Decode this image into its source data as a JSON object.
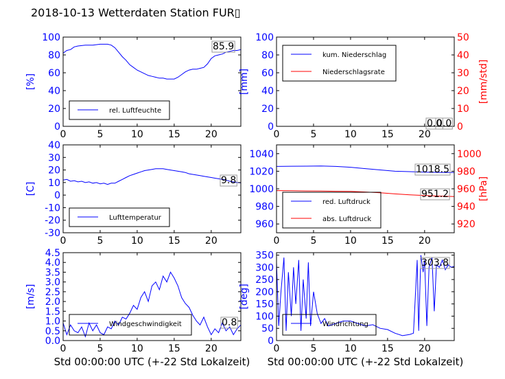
{
  "title": "2018-10-13 Wetterdaten Station FUR▯",
  "xlabel": "Std 00:00:00 UTC (+-22 Std Lokalzeit)",
  "colors": {
    "left_axis": "#0000ff",
    "right_axis": "#ff0000",
    "line1": "#0000ff",
    "line2": "#ff0000",
    "line_light": "#7f7fff"
  },
  "chart_data": [
    {
      "type": "line",
      "panel": "humidity",
      "ylabel": "[%]",
      "xlim": [
        0,
        24
      ],
      "ylim": [
        0,
        100
      ],
      "xticks": [
        0,
        5,
        10,
        15,
        20
      ],
      "yticks": [
        0,
        20,
        40,
        60,
        80,
        100
      ],
      "legend": "bottom-left",
      "grid": false,
      "series": [
        {
          "name": "rel. Luftfeuchte",
          "x": [
            0,
            0.5,
            1,
            1.5,
            2,
            3,
            4,
            5,
            6,
            6.5,
            7,
            7.5,
            8,
            8.5,
            9,
            9.5,
            10,
            10.5,
            11,
            11.5,
            12,
            12.5,
            13,
            13.5,
            14,
            14.5,
            15,
            15.5,
            16,
            16.5,
            17,
            17.5,
            18,
            18.5,
            19,
            19.5,
            20,
            20.5,
            21,
            21.5,
            22,
            22.5,
            23,
            23.5,
            24
          ],
          "y": [
            82,
            85,
            86,
            89,
            90,
            91,
            91,
            92,
            92,
            91,
            88,
            83,
            78,
            74,
            69,
            66,
            63,
            61,
            59,
            57,
            56,
            55,
            54,
            54,
            53,
            53,
            53,
            55,
            58,
            61,
            63,
            64,
            64,
            65,
            66,
            70,
            76,
            79,
            80,
            81,
            83,
            84,
            85,
            85,
            86
          ]
        }
      ],
      "annotation": "85.9"
    },
    {
      "type": "line",
      "panel": "precipitation",
      "ylabel": "[mm]",
      "ylabel_right": "[mm/std]",
      "xlim": [
        0,
        24
      ],
      "ylim": [
        0,
        100
      ],
      "ylim_right": [
        0,
        50
      ],
      "xticks": [
        0,
        5,
        10,
        15,
        20
      ],
      "yticks": [
        0,
        20,
        40,
        60,
        80,
        100
      ],
      "yticks_right": [
        0,
        10,
        20,
        30,
        40,
        50
      ],
      "legend": "top-left",
      "grid": false,
      "series": [
        {
          "name": "kum. Niederschlag",
          "x": [
            0,
            24
          ],
          "y": [
            0,
            0
          ]
        },
        {
          "name": "Niederschlagsrate",
          "x": [
            0,
            24
          ],
          "y": [
            0,
            0
          ],
          "axis": "right"
        }
      ],
      "annotation": "0.0",
      "annotation2": "0.0"
    },
    {
      "type": "line",
      "panel": "temperature",
      "ylabel": "[C]",
      "xlim": [
        0,
        24
      ],
      "ylim": [
        -30,
        40
      ],
      "xticks": [
        0,
        5,
        10,
        15,
        20
      ],
      "yticks": [
        -30,
        -20,
        -10,
        0,
        10,
        20,
        30,
        40
      ],
      "legend": "bottom-left",
      "grid": false,
      "series": [
        {
          "name": "Lufttemperatur",
          "x": [
            0,
            0.5,
            1,
            1.5,
            2,
            2.5,
            3,
            3.5,
            4,
            4.5,
            5,
            5.5,
            6,
            6.5,
            7,
            7.5,
            8,
            8.5,
            9,
            9.5,
            10,
            10.5,
            11,
            11.5,
            12,
            12.5,
            13,
            13.5,
            14,
            14.5,
            15,
            15.5,
            16,
            16.5,
            17,
            17.5,
            18,
            18.5,
            19,
            19.5,
            20,
            20.5,
            21,
            21.5,
            22,
            22.5,
            23,
            23.5,
            24
          ],
          "y": [
            12,
            12.5,
            11,
            11.5,
            10.5,
            11,
            10,
            10.5,
            9.5,
            10,
            9,
            9.5,
            8.5,
            9.5,
            9.5,
            11,
            12.5,
            14,
            15.5,
            16.5,
            17.5,
            18.5,
            19.5,
            20,
            20.5,
            21,
            21,
            21,
            20.5,
            20,
            19.5,
            19,
            18.5,
            18,
            17,
            16.5,
            16,
            15.5,
            15,
            14.5,
            14,
            13.5,
            13,
            12.5,
            12,
            11,
            10.5,
            10,
            9.8
          ]
        }
      ],
      "annotation": "9.8"
    },
    {
      "type": "line",
      "panel": "pressure",
      "ylabel_right": "[hPa]",
      "xlim": [
        0,
        24
      ],
      "ylim": [
        950,
        1050
      ],
      "ylim_right": [
        910,
        1010
      ],
      "xticks": [
        0,
        5,
        10,
        15,
        20
      ],
      "yticks": [
        960,
        980,
        1000,
        1020,
        1040
      ],
      "yticks_right": [
        920,
        940,
        960,
        980,
        1000
      ],
      "legend": "bottom-left",
      "grid": false,
      "series": [
        {
          "name": "red. Luftdruck",
          "x": [
            0,
            2,
            4,
            6,
            8,
            10,
            12,
            14,
            16,
            18,
            20,
            22,
            24
          ],
          "y": [
            1025.5,
            1025.7,
            1025.8,
            1026,
            1025.5,
            1024.5,
            1023,
            1021.5,
            1020,
            1019.5,
            1019,
            1018.7,
            1018.5
          ]
        },
        {
          "name": "abs. Luftdruck",
          "x": [
            0,
            2,
            4,
            6,
            8,
            10,
            12,
            14,
            16,
            18,
            20,
            22,
            24
          ],
          "y": [
            958,
            957.8,
            957.6,
            957.5,
            957.2,
            957,
            956.4,
            955.5,
            954.2,
            953.2,
            952.4,
            951.7,
            951.2
          ],
          "axis": "right"
        }
      ],
      "annotation": "1018.5",
      "annotation2": "951.2"
    },
    {
      "type": "line",
      "panel": "wind_speed",
      "ylabel": "[m/s]",
      "xlim": [
        0,
        24
      ],
      "ylim": [
        0,
        4.5
      ],
      "xticks": [
        0,
        5,
        10,
        15,
        20
      ],
      "yticks": [
        0.0,
        0.5,
        1.0,
        1.5,
        2.0,
        2.5,
        3.0,
        3.5,
        4.0,
        4.5
      ],
      "legend": "bottom-left",
      "grid": false,
      "series": [
        {
          "name": "Windgeschwindigkeit",
          "x": [
            0,
            0.5,
            1,
            1.5,
            2,
            2.5,
            3,
            3.5,
            4,
            4.5,
            5,
            5.5,
            6,
            6.5,
            7,
            7.5,
            8,
            8.5,
            9,
            9.5,
            10,
            10.5,
            11,
            11.5,
            12,
            12.5,
            13,
            13.5,
            14,
            14.5,
            15,
            15.5,
            16,
            16.5,
            17,
            17.5,
            18,
            18.5,
            19,
            19.5,
            20,
            20.5,
            21,
            21.5,
            22,
            22.5,
            23,
            23.5,
            24
          ],
          "y": [
            0.9,
            0.3,
            0.8,
            0.5,
            0.4,
            0.7,
            0.2,
            0.9,
            0.5,
            0.8,
            0.4,
            0.3,
            0.7,
            0.6,
            1.0,
            0.8,
            1.2,
            1.1,
            1.4,
            1.8,
            1.6,
            2.2,
            2.5,
            2.0,
            2.8,
            3.0,
            2.6,
            3.3,
            3.0,
            3.5,
            3.2,
            2.8,
            2.2,
            1.9,
            1.7,
            1.3,
            1.0,
            0.8,
            1.2,
            0.7,
            0.3,
            0.6,
            0.4,
            0.9,
            0.5,
            0.7,
            0.3,
            0.6,
            0.8
          ]
        }
      ],
      "annotation": "0.8"
    },
    {
      "type": "line",
      "panel": "wind_direction",
      "ylabel": "[deg]",
      "xlim": [
        0,
        24
      ],
      "ylim": [
        0,
        360
      ],
      "xticks": [
        0,
        5,
        10,
        15,
        20
      ],
      "yticks": [
        0,
        50,
        100,
        150,
        200,
        250,
        300,
        350
      ],
      "legend": "bottom-left",
      "grid": false,
      "series": [
        {
          "name": "Windrichtung",
          "x": [
            0,
            0.3,
            0.6,
            1,
            1.3,
            1.6,
            2,
            2.3,
            2.6,
            3,
            3.3,
            3.6,
            4,
            4.3,
            4.6,
            5,
            5.5,
            6,
            6.5,
            7,
            8,
            9,
            10,
            11,
            12,
            13,
            14,
            15,
            16,
            17,
            18,
            18.5,
            19,
            19.2,
            19.5,
            19.8,
            20,
            20.3,
            20.6,
            21,
            21.3,
            21.6,
            22,
            22.4,
            22.8,
            23.2,
            23.6,
            24
          ],
          "y": [
            320,
            60,
            200,
            340,
            40,
            280,
            100,
            300,
            150,
            330,
            40,
            250,
            90,
            320,
            60,
            200,
            110,
            70,
            90,
            60,
            70,
            80,
            80,
            70,
            60,
            65,
            50,
            45,
            30,
            20,
            25,
            30,
            330,
            40,
            350,
            280,
            330,
            60,
            300,
            340,
            120,
            310,
            300,
            330,
            290,
            310,
            300,
            304
          ]
        }
      ],
      "annotation": "303.8"
    }
  ]
}
